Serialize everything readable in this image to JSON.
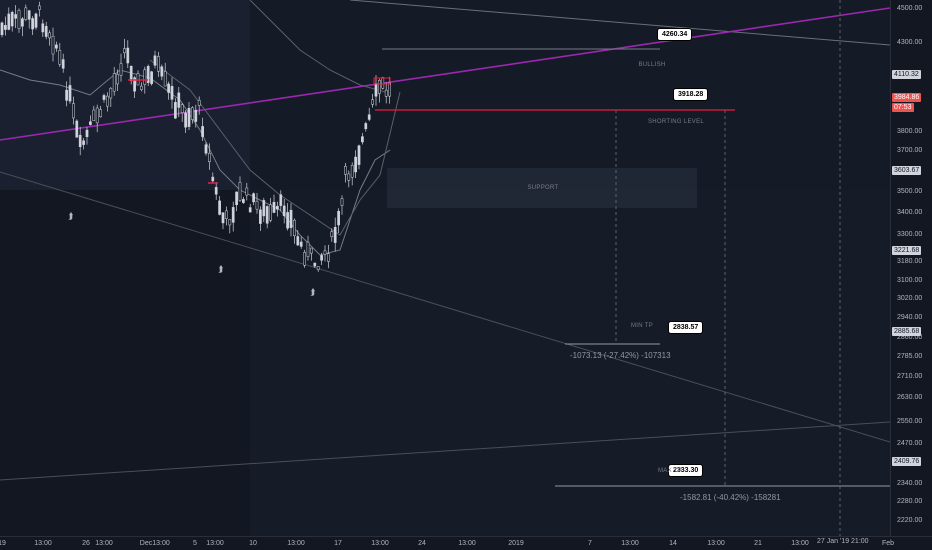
{
  "price_axis": {
    "ticks": [
      "4500.00",
      "4300.00",
      "4110.32",
      "3984.86",
      "3800.00",
      "3700.00",
      "3603.67",
      "3500.00",
      "3400.00",
      "3300.00",
      "3221.68",
      "3180.00",
      "3100.00",
      "3020.00",
      "2940.00",
      "2885.68",
      "2860.00",
      "2785.00",
      "2710.00",
      "2630.00",
      "2550.00",
      "2470.00",
      "2409.76",
      "2340.00",
      "2280.00",
      "2220.00"
    ],
    "badges": {
      "current_price": "3984.86",
      "countdown": "07:53",
      "level_4110": "4110.32",
      "level_3603": "3603.67",
      "level_3221": "3221.68",
      "level_2885": "2885.68",
      "level_2409": "2409.76"
    },
    "colors": {
      "current": "#ef5350",
      "level": "#d1d4dc"
    }
  },
  "time_axis": {
    "ticks": [
      "19",
      "13:00",
      "26",
      "13:00",
      "Dec",
      "13:00",
      "5",
      "13:00",
      "10",
      "13:00",
      "17",
      "13:00",
      "24",
      "13:00",
      "2019",
      "7",
      "13:00",
      "14",
      "13:00",
      "21",
      "13:00",
      "Feb"
    ],
    "crosshair_label": "27 Jan '19  21:00"
  },
  "annotations": {
    "callouts": {
      "bullish_target": "4260.34",
      "shorting_level": "3918.28",
      "min_tp": "2838.57",
      "max_tp": "2333.30"
    },
    "labels": {
      "bullish": "BULLISH",
      "shorting_level": "SHORTING LEVEL",
      "support": "SUPPORT",
      "min_tp": "MIN TP",
      "max_tp": "MAX TP"
    },
    "measurements": {
      "min_tp": "-1073.13 (-27.42%) -107313",
      "max_tp": "-1582.81 (-40.42%) -158281"
    }
  },
  "icons": [
    "double-chevron-up-icon"
  ],
  "colors": {
    "background": "#161b28",
    "trendline_purple": "#9c27b0",
    "shorting_line": "#e91e3c",
    "candle_body": "#d1d4dc",
    "grid": "#2a2e39"
  }
}
